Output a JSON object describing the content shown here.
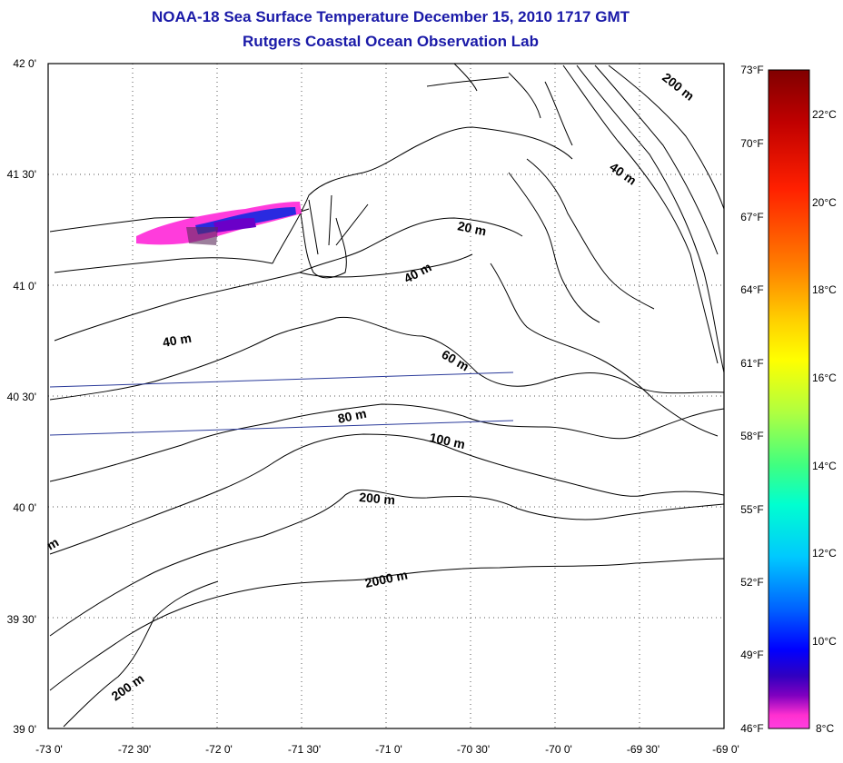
{
  "title": {
    "line1": "NOAA-18 Sea Surface Temperature December 15, 2010 1717 GMT",
    "line2": "Rutgers Coastal Ocean Observation Lab"
  },
  "map": {
    "lat_labels": [
      "42 0'",
      "41 30'",
      "41 0'",
      "40 30'",
      "40 0'",
      "39 30'",
      "39 0'"
    ],
    "lon_labels": [
      "-73 0'",
      "-72 30'",
      "-72 0'",
      "-71 30'",
      "-71 0'",
      "-70 30'",
      "-70 0'",
      "-69 30'",
      "-69 0'"
    ],
    "lat_range": [
      39.0,
      42.0
    ],
    "lon_range": [
      -73.0,
      -69.0
    ],
    "grid": "dotted",
    "contour_labels": [
      "200 m",
      "40 m",
      "20 m",
      "40 m",
      "40 m",
      "60 m",
      "80 m",
      "100 m",
      "200 m",
      "2000 m",
      "200 m",
      "m"
    ],
    "land_color": "#ffffff",
    "contour_color": "#000000",
    "track_color": "#2a3a9a"
  },
  "colorbar": {
    "f_labels": [
      "73°F",
      "70°F",
      "67°F",
      "64°F",
      "61°F",
      "58°F",
      "55°F",
      "52°F",
      "49°F",
      "46°F"
    ],
    "c_labels": [
      "22°C",
      "20°C",
      "18°C",
      "16°C",
      "14°C",
      "12°C",
      "10°C",
      "8°C"
    ],
    "range_f": [
      46,
      73
    ],
    "range_c": [
      8,
      23
    ],
    "gradient_colors": [
      "#800000",
      "#c00000",
      "#ff2000",
      "#ff8000",
      "#ffd000",
      "#ffff00",
      "#b0ff40",
      "#40ff80",
      "#00ffd0",
      "#00c8ff",
      "#0060ff",
      "#0000ff",
      "#3000c0",
      "#8000c0",
      "#ff30d0",
      "#ff40e0"
    ]
  }
}
